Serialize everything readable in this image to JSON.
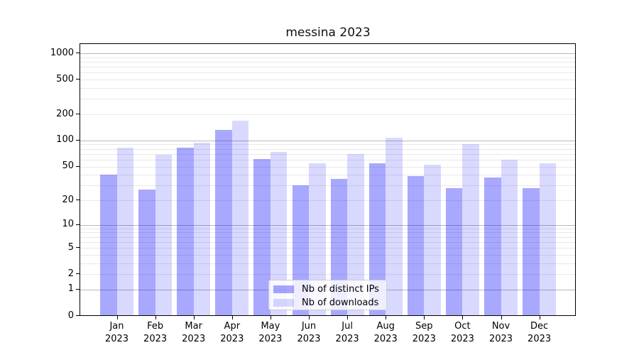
{
  "title": "messina 2023",
  "chart_data": {
    "type": "bar",
    "title": "messina 2023",
    "scale": "log1p",
    "categories": [
      "Jan",
      "Feb",
      "Mar",
      "Apr",
      "May",
      "Jun",
      "Jul",
      "Aug",
      "Sep",
      "Oct",
      "Nov",
      "Dec"
    ],
    "year": "2023",
    "series": [
      {
        "name": "Nb of distinct IPs",
        "color": "rgba(0,0,255,0.34)",
        "values": [
          40,
          27,
          83,
          132,
          61,
          30,
          36,
          54,
          39,
          28,
          37,
          28
        ]
      },
      {
        "name": "Nb of downloads",
        "color": "rgba(0,0,255,0.15)",
        "values": [
          82,
          68,
          94,
          169,
          74,
          54,
          70,
          107,
          52,
          91,
          60,
          54
        ]
      }
    ],
    "yticks_labeled": [
      0,
      1,
      2,
      5,
      10,
      20,
      50,
      100,
      200,
      500,
      1000
    ],
    "grid_major": [
      1,
      10,
      100,
      1000
    ],
    "grid_minor": [
      2,
      3,
      4,
      5,
      6,
      7,
      8,
      9,
      20,
      30,
      40,
      50,
      60,
      70,
      80,
      90,
      200,
      300,
      400,
      500,
      600,
      700,
      800,
      900
    ],
    "ylim": [
      0,
      1276
    ],
    "xlabel": "",
    "ylabel": "",
    "grid": "both",
    "legend_position": "lower center"
  }
}
